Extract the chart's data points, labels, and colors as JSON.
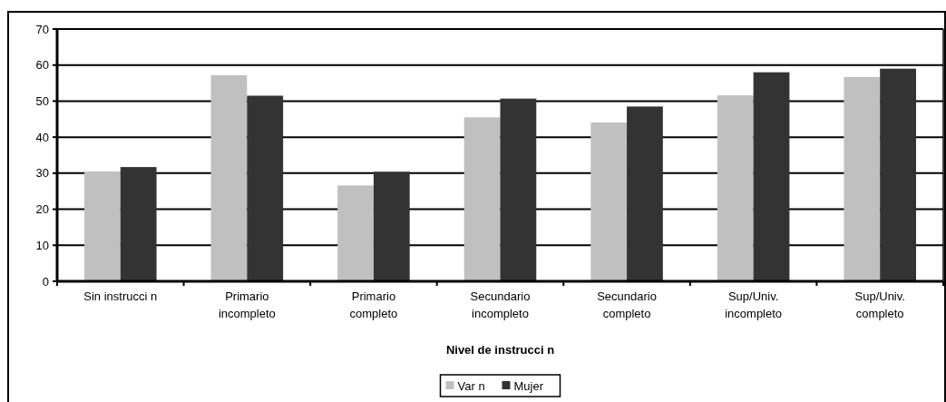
{
  "chart_data": {
    "type": "bar",
    "xlabel": "Nivel de instrucci n",
    "categories": [
      "Sin instrucci n",
      "Primario incompleto",
      "Primario completo",
      "Secundario incompleto",
      "Secundario completo",
      "Sup/Univ. incompleto",
      "Sup/Univ. completo"
    ],
    "series": [
      {
        "name": "Var n",
        "color": "#c0c0c0",
        "values": [
          30.4,
          57.2,
          26.6,
          45.5,
          44.1,
          51.6,
          56.7
        ]
      },
      {
        "name": "Mujer",
        "color": "#333333",
        "values": [
          31.7,
          51.5,
          30.4,
          50.7,
          48.5,
          58.0,
          59.0
        ]
      }
    ],
    "ylim": [
      0,
      70
    ],
    "yticks": [
      0,
      10,
      20,
      30,
      40,
      50,
      60,
      70
    ],
    "grid": "y",
    "legend": "bottom"
  }
}
